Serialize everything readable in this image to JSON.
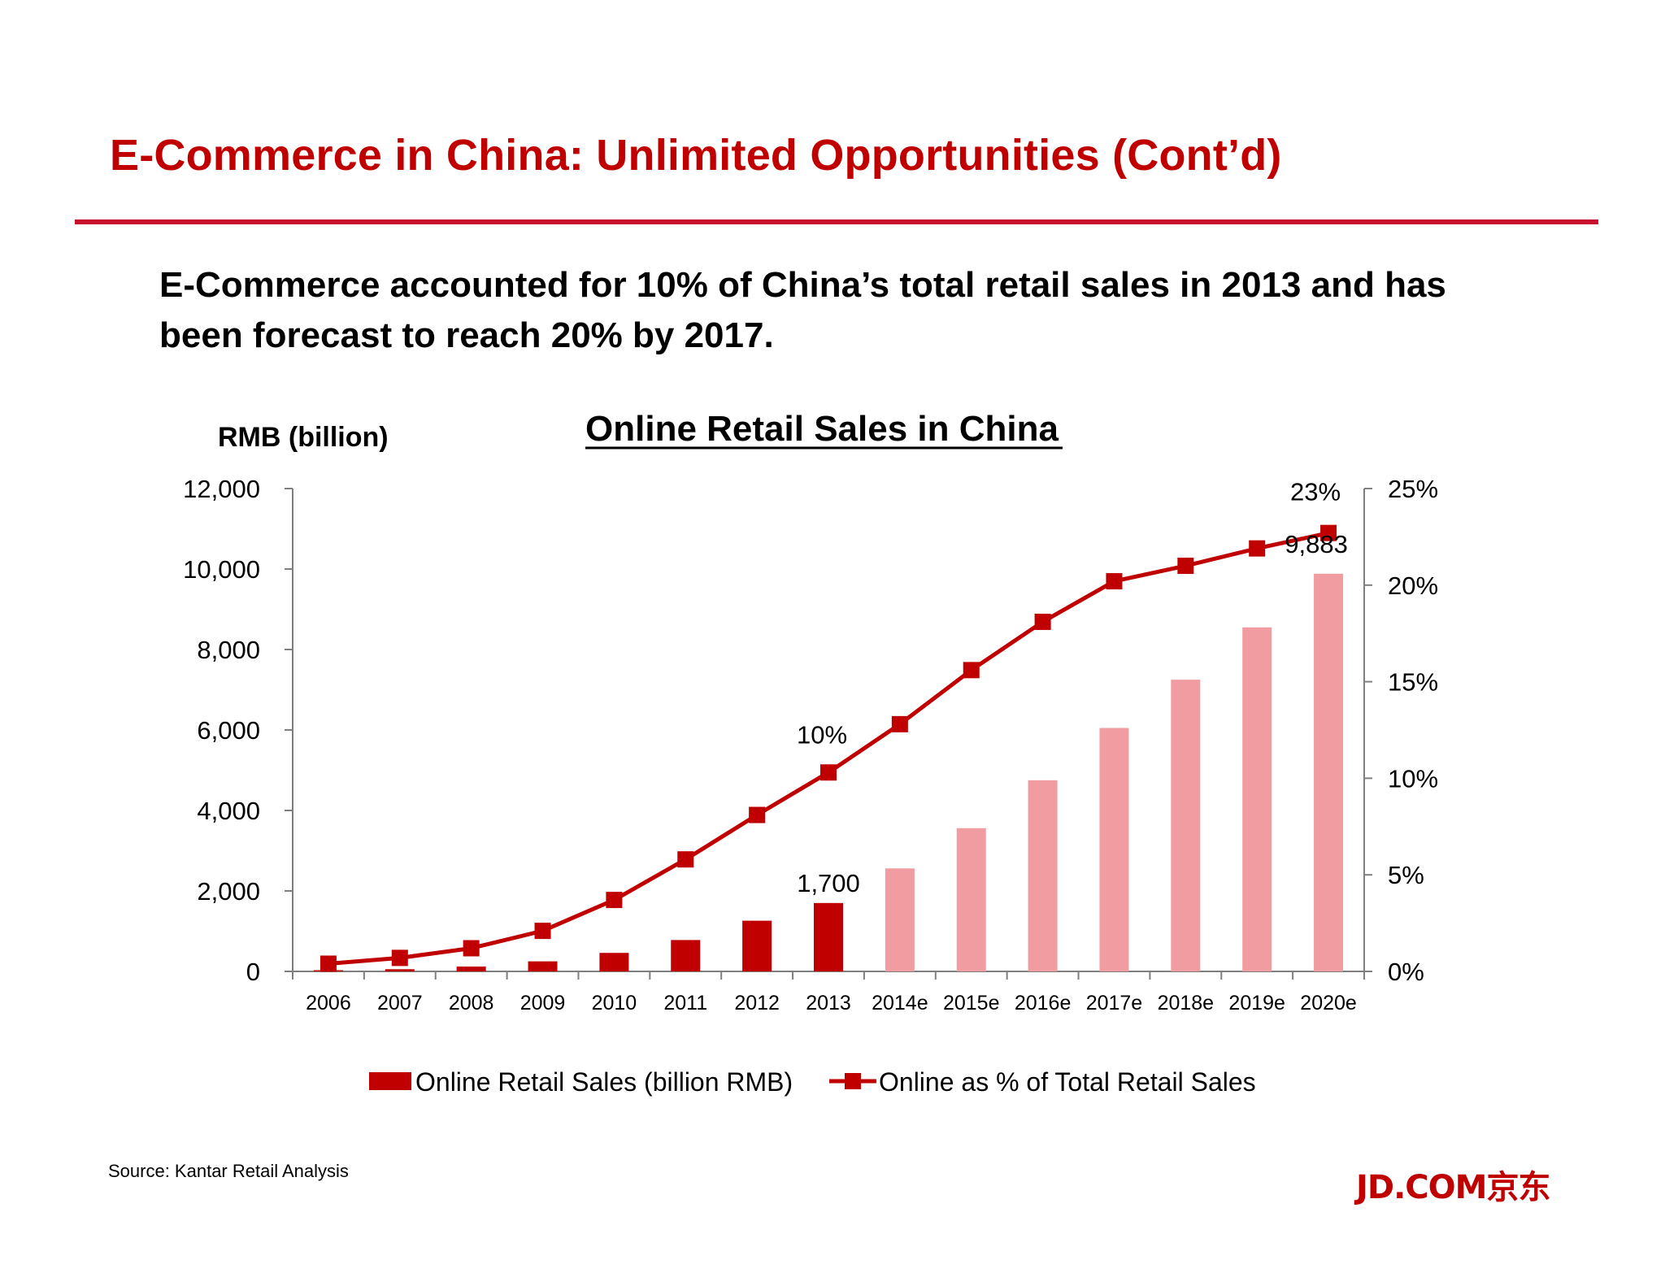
{
  "page": {
    "title": "E-Commerce in China: Unlimited Opportunities (Cont’d)",
    "subtitle_line1": "E-Commerce accounted for 10% of China’s total retail sales in 2013 and has",
    "subtitle_line2": "been forecast to reach 20% by 2017.",
    "source": "Source: Kantar Retail Analysis",
    "logo_text": "JD.COM",
    "logo_cjk": "京东"
  },
  "colors": {
    "accent": "#c00000",
    "rule": "#c8102e",
    "bar_actual": "#c00000",
    "bar_forecast": "#f19ca0",
    "line": "#c00000",
    "axis": "#7f7f7f"
  },
  "chart_data": {
    "type": "bar",
    "title": "Online Retail Sales in China",
    "ylabel": "RMB (billion)",
    "categories": [
      "2006",
      "2007",
      "2008",
      "2009",
      "2010",
      "2011",
      "2012",
      "2013",
      "2014e",
      "2015e",
      "2016e",
      "2017e",
      "2018e",
      "2019e",
      "2020e"
    ],
    "series": [
      {
        "name": "Online Retail Sales (billion RMB)",
        "kind": "bar",
        "axis": "left",
        "values": [
          30,
          55,
          120,
          250,
          460,
          780,
          1260,
          1700,
          2560,
          3560,
          4750,
          6050,
          7250,
          8550,
          9883
        ],
        "forecast_from_index": 8
      },
      {
        "name": "Online as % of Total Retail Sales",
        "kind": "line",
        "axis": "right",
        "values": [
          0.4,
          0.7,
          1.2,
          2.1,
          3.7,
          5.8,
          8.1,
          10.3,
          12.8,
          15.6,
          18.1,
          20.2,
          21.0,
          21.9,
          22.7
        ]
      }
    ],
    "ylim": [
      0,
      12000
    ],
    "yticks": [
      0,
      2000,
      4000,
      6000,
      8000,
      10000,
      12000
    ],
    "ytick_labels": [
      "0",
      "2,000",
      "4,000",
      "6,000",
      "8,000",
      "10,000",
      "12,000"
    ],
    "y2lim": [
      0,
      25
    ],
    "y2ticks": [
      0,
      5,
      10,
      15,
      20,
      25
    ],
    "y2tick_labels": [
      "0%",
      "5%",
      "10%",
      "15%",
      "20%",
      "25%"
    ],
    "annotations": [
      {
        "text": "1,700",
        "series": 0,
        "index": 7
      },
      {
        "text": "10%",
        "series": 1,
        "index": 7
      },
      {
        "text": "9,883",
        "series": 0,
        "index": 14
      },
      {
        "text": "23%",
        "series": 1,
        "index": 14
      }
    ],
    "legend_position": "bottom-center",
    "grid": false
  }
}
